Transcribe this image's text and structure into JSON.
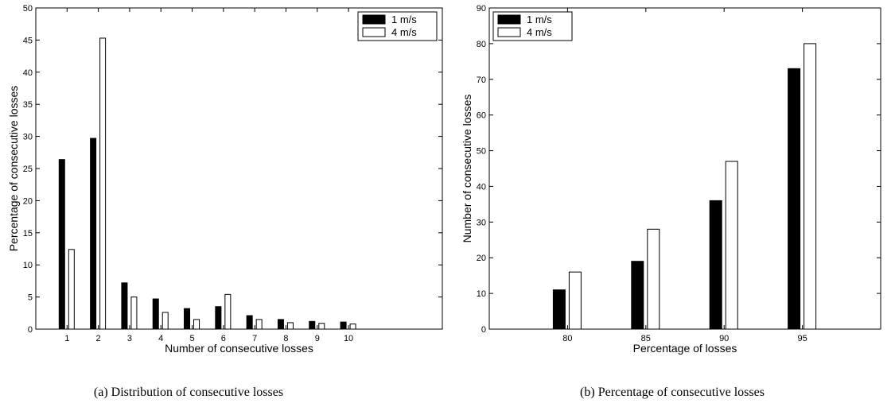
{
  "chart_data": [
    {
      "type": "bar",
      "title": "",
      "xlabel": "Number of consecutive losses",
      "ylabel": "Percentage of consecutive losses",
      "categories": [
        "1",
        "2",
        "3",
        "4",
        "5",
        "6",
        "7",
        "8",
        "9",
        "10"
      ],
      "x": [
        1,
        2,
        3,
        4,
        5,
        6,
        7,
        8,
        9,
        10
      ],
      "xlim": [
        0,
        13
      ],
      "ylim": [
        0,
        50
      ],
      "yticks": [
        0,
        5,
        10,
        15,
        20,
        25,
        30,
        35,
        40,
        45,
        50
      ],
      "grid": false,
      "legend": "top-right",
      "series": [
        {
          "name": "1 m/s",
          "color": "#000000",
          "values": [
            26.4,
            29.7,
            7.2,
            4.7,
            3.2,
            3.5,
            2.1,
            1.5,
            1.2,
            1.1
          ]
        },
        {
          "name": "4 m/s",
          "color": "#ffffff",
          "values": [
            12.4,
            45.3,
            5.0,
            2.6,
            1.5,
            5.4,
            1.5,
            1.0,
            0.9,
            0.8
          ]
        }
      ],
      "caption": "(a) Distribution of consecutive losses"
    },
    {
      "type": "bar",
      "title": "",
      "xlabel": "Percentage of losses",
      "ylabel": "Number of consecutive losses",
      "categories": [
        "80",
        "85",
        "90",
        "95"
      ],
      "x": [
        80,
        85,
        90,
        95
      ],
      "xlim": [
        75,
        100
      ],
      "ylim": [
        0,
        90
      ],
      "yticks": [
        0,
        10,
        20,
        30,
        40,
        50,
        60,
        70,
        80,
        90
      ],
      "grid": false,
      "legend": "top-left",
      "series": [
        {
          "name": "1 m/s",
          "color": "#000000",
          "values": [
            11,
            19,
            36,
            73
          ]
        },
        {
          "name": "4 m/s",
          "color": "#ffffff",
          "values": [
            16,
            28,
            47,
            80
          ]
        }
      ],
      "caption": "(b) Percentage of consecutive losses"
    }
  ]
}
